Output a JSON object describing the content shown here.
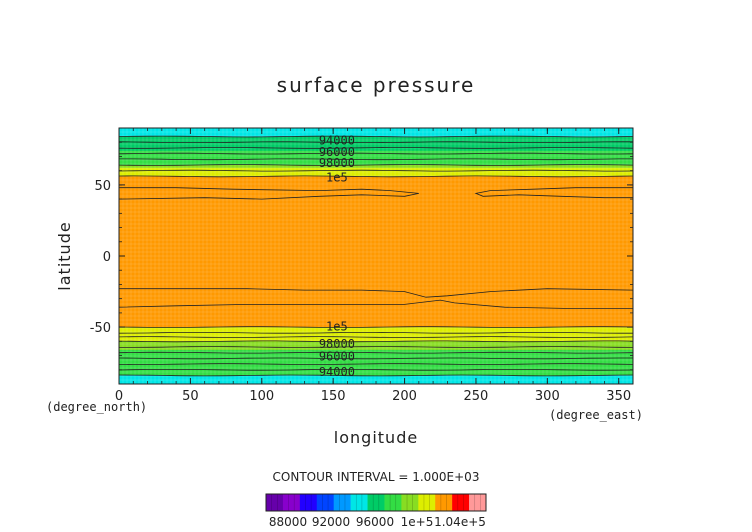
{
  "chart_data": {
    "type": "heatmap",
    "title": "surface pressure",
    "xlabel": "longitude",
    "ylabel": "latitude",
    "x_unit": "(degree_east)",
    "y_unit": "(degree_north)",
    "xlim": [
      0,
      360
    ],
    "ylim": [
      -90,
      90
    ],
    "x_ticks": [
      0,
      50,
      100,
      150,
      200,
      250,
      300,
      350
    ],
    "y_ticks": [
      -50,
      0,
      50
    ],
    "contour_interval_text": "CONTOUR INTERVAL = 1.000E+03",
    "grid": false,
    "contour_labels": [
      {
        "text": "94000",
        "lon": 140,
        "lat": 82
      },
      {
        "text": "96000",
        "lon": 140,
        "lat": 74
      },
      {
        "text": "98000",
        "lon": 140,
        "lat": 66
      },
      {
        "text": "1e5",
        "lon": 140,
        "lat": 56
      },
      {
        "text": "1e5",
        "lon": 140,
        "lat": -49
      },
      {
        "text": "98000",
        "lon": 140,
        "lat": -61
      },
      {
        "text": "96000",
        "lon": 140,
        "lat": -70
      },
      {
        "text": "94000",
        "lon": 140,
        "lat": -81
      }
    ],
    "bands_north": [
      {
        "from_lat": 90,
        "to_lat": 84,
        "color": "#00e6e6"
      },
      {
        "from_lat": 84,
        "to_lat": 74,
        "color": "#00cc66"
      },
      {
        "from_lat": 74,
        "to_lat": 64,
        "color": "#33dd44"
      },
      {
        "from_lat": 64,
        "to_lat": 62,
        "color": "#88dd22"
      },
      {
        "from_lat": 62,
        "to_lat": 56,
        "color": "#ddee00"
      },
      {
        "from_lat": 56,
        "to_lat": 0,
        "color": "#ff9900"
      }
    ],
    "bands_south": [
      {
        "from_lat": 0,
        "to_lat": -50,
        "color": "#ff9900"
      },
      {
        "from_lat": -50,
        "to_lat": -54,
        "color": "#ddee00"
      },
      {
        "from_lat": -54,
        "to_lat": -60,
        "color": "#ddee00"
      },
      {
        "from_lat": -60,
        "to_lat": -66,
        "color": "#88dd22"
      },
      {
        "from_lat": -66,
        "to_lat": -84,
        "color": "#33dd44"
      },
      {
        "from_lat": -84,
        "to_lat": -90,
        "color": "#00e6e6"
      }
    ],
    "contour_lines_lat": [
      84,
      80,
      76,
      72,
      68,
      64,
      60,
      56,
      -50,
      -54,
      -57,
      -60,
      -64,
      -68,
      -72,
      -76,
      -80,
      -84
    ],
    "inner_contours": [
      [
        [
          0,
          48
        ],
        [
          40,
          48
        ],
        [
          80,
          47
        ],
        [
          140,
          46
        ],
        [
          170,
          47
        ],
        [
          190,
          46
        ],
        [
          210,
          44
        ],
        [
          200,
          42
        ],
        [
          170,
          43
        ],
        [
          140,
          42
        ],
        [
          100,
          40
        ],
        [
          60,
          41
        ],
        [
          0,
          40
        ]
      ],
      [
        [
          360,
          48
        ],
        [
          320,
          48
        ],
        [
          290,
          47
        ],
        [
          260,
          46
        ],
        [
          250,
          44
        ],
        [
          255,
          42
        ],
        [
          280,
          43
        ],
        [
          310,
          42
        ],
        [
          340,
          41
        ],
        [
          360,
          41
        ]
      ],
      [
        [
          0,
          -23
        ],
        [
          40,
          -23
        ],
        [
          90,
          -23
        ],
        [
          130,
          -24
        ],
        [
          170,
          -24
        ],
        [
          200,
          -25
        ],
        [
          215,
          -29
        ],
        [
          230,
          -28
        ],
        [
          260,
          -25
        ],
        [
          300,
          -23
        ],
        [
          360,
          -24
        ]
      ],
      [
        [
          0,
          -36
        ],
        [
          40,
          -35
        ],
        [
          90,
          -34
        ],
        [
          130,
          -34
        ],
        [
          160,
          -34
        ],
        [
          200,
          -34
        ],
        [
          225,
          -31
        ],
        [
          235,
          -33
        ],
        [
          270,
          -36
        ],
        [
          320,
          -37
        ],
        [
          360,
          -37
        ]
      ]
    ],
    "colorbar": {
      "colors": [
        "#6600aa",
        "#8800cc",
        "#2200ff",
        "#0044ff",
        "#0099ff",
        "#00e6e6",
        "#00cc66",
        "#33dd44",
        "#88dd22",
        "#ddee00",
        "#ff9900",
        "#ff0000",
        "#ff9999"
      ],
      "labels": [
        "88000",
        "92000",
        "96000",
        "1e+5",
        "1.04e+5"
      ]
    }
  }
}
